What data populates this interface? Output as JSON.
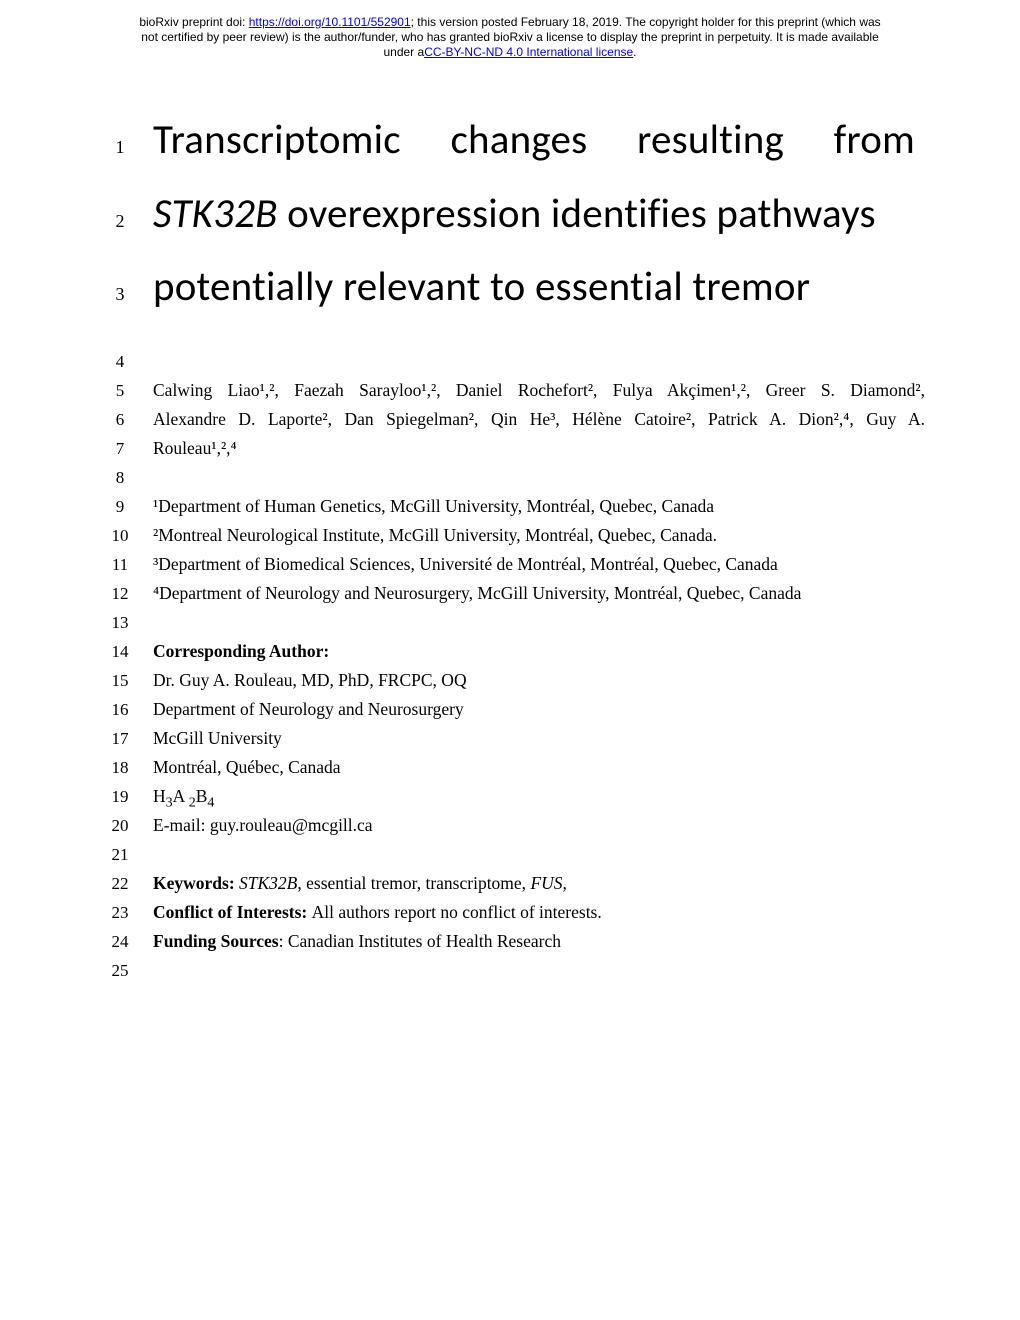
{
  "header": {
    "line1_pre": "bioRxiv preprint doi: ",
    "doi_url": "https://doi.org/10.1101/552901",
    "line1_post": "; this version posted February 18, 2019. The copyright holder for this preprint (which was",
    "line2": "not certified by peer review) is the author/funder, who has granted bioRxiv a license to display the preprint in perpetuity. It is made available",
    "line3_pre": "under a",
    "license_text": "CC-BY-NC-ND 4.0 International license",
    "line3_post": "."
  },
  "title": {
    "l1_num": "1",
    "l1": "Transcriptomic changes resulting from",
    "l2_num": "2",
    "l2_italic": "STK32B",
    "l2_rest": " overexpression identifies pathways",
    "l3_num": "3",
    "l3": "potentially relevant to essential tremor"
  },
  "lines": {
    "n4": "4",
    "n5": "5",
    "t5": "Calwing Liao¹,², Faezah Sarayloo¹,², Daniel Rochefort², Fulya Akçimen¹,², Greer S. Diamond²,",
    "n6": "6",
    "t6": "Alexandre D. Laporte², Dan Spiegelman², Qin He³, Hélène Catoire², Patrick A. Dion²,⁴, Guy A.",
    "n7": "7",
    "t7": "Rouleau¹,²,⁴",
    "n8": "8",
    "n9": "9",
    "t9": "¹Department of Human Genetics, McGill University, Montréal, Quebec, Canada",
    "n10": "10",
    "t10": "²Montreal Neurological Institute, McGill University, Montréal, Quebec, Canada.",
    "n11": "11",
    "t11": "³Department of Biomedical Sciences, Université de Montréal, Montréal, Quebec, Canada",
    "n12": "12",
    "t12": "⁴Department of Neurology and Neurosurgery, McGill University, Montréal, Quebec, Canada",
    "n13": "13",
    "n14": "14",
    "t14": "Corresponding Author:",
    "n15": "15",
    "t15": "Dr. Guy A. Rouleau, MD, PhD, FRCPC, OQ",
    "n16": "16",
    "t16": "Department of Neurology and Neurosurgery",
    "n17": "17",
    "t17": "McGill University",
    "n18": "18",
    "t18": "Montréal, Québec, Canada",
    "n19": "19",
    "t19_a": "H",
    "t19_b": "3",
    "t19_c": "A ",
    "t19_d": "2",
    "t19_e": "B",
    "t19_f": "4",
    "n20": "20",
    "t20": "E-mail: guy.rouleau@mcgill.ca",
    "n21": "21",
    "n22": "22",
    "t22a": "Keywords: ",
    "t22b": "STK32B",
    "t22c": ", essential tremor, transcriptome, ",
    "t22d": "FUS,",
    "n23": "23",
    "t23a": "Conflict of Interests: ",
    "t23b": "All authors report no conflict of interests.",
    "n24": "24",
    "t24a": "Funding Sources",
    "t24b": ": Canadian Institutes of Health Research",
    "n25": "25"
  }
}
